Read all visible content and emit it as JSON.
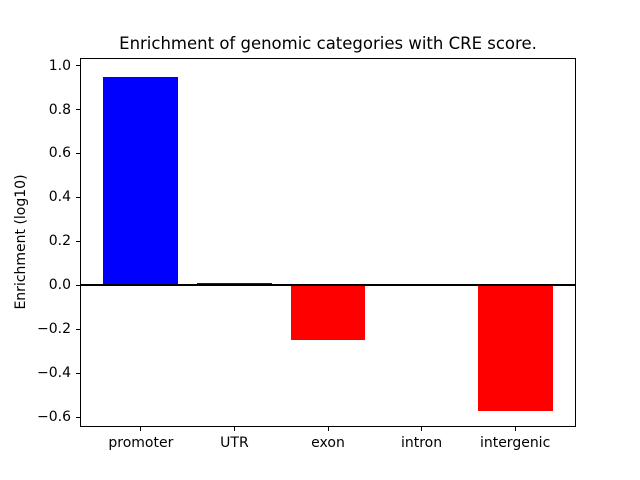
{
  "window": {
    "background_color": "#ffffff"
  },
  "chart_data": {
    "type": "bar",
    "title": "Enrichment of genomic categories with CRE score.",
    "xlabel": "",
    "ylabel": "Enrichment (log10)",
    "categories": [
      "promoter",
      "UTR",
      "exon",
      "intron",
      "intergenic"
    ],
    "values": [
      0.95,
      0.01,
      -0.25,
      0.0,
      -0.57
    ],
    "bar_colors": [
      "#0000ff",
      "#0000ff",
      "#ff0000",
      "#ff0000",
      "#ff0000"
    ],
    "positive_color": "#0000ff",
    "negative_color": "#ff0000",
    "bar_width": 0.8,
    "ylim": [
      -0.64,
      1.03
    ],
    "xlim": [
      -0.64,
      4.64
    ],
    "y_ticks": [
      1.0,
      0.8,
      0.6,
      0.4,
      0.2,
      0.0,
      -0.2,
      -0.4,
      -0.6
    ],
    "zero_line": true,
    "grid": false,
    "legend": null,
    "frame_color": "#000000",
    "text_color": "#000000",
    "minus_sign": "−"
  }
}
